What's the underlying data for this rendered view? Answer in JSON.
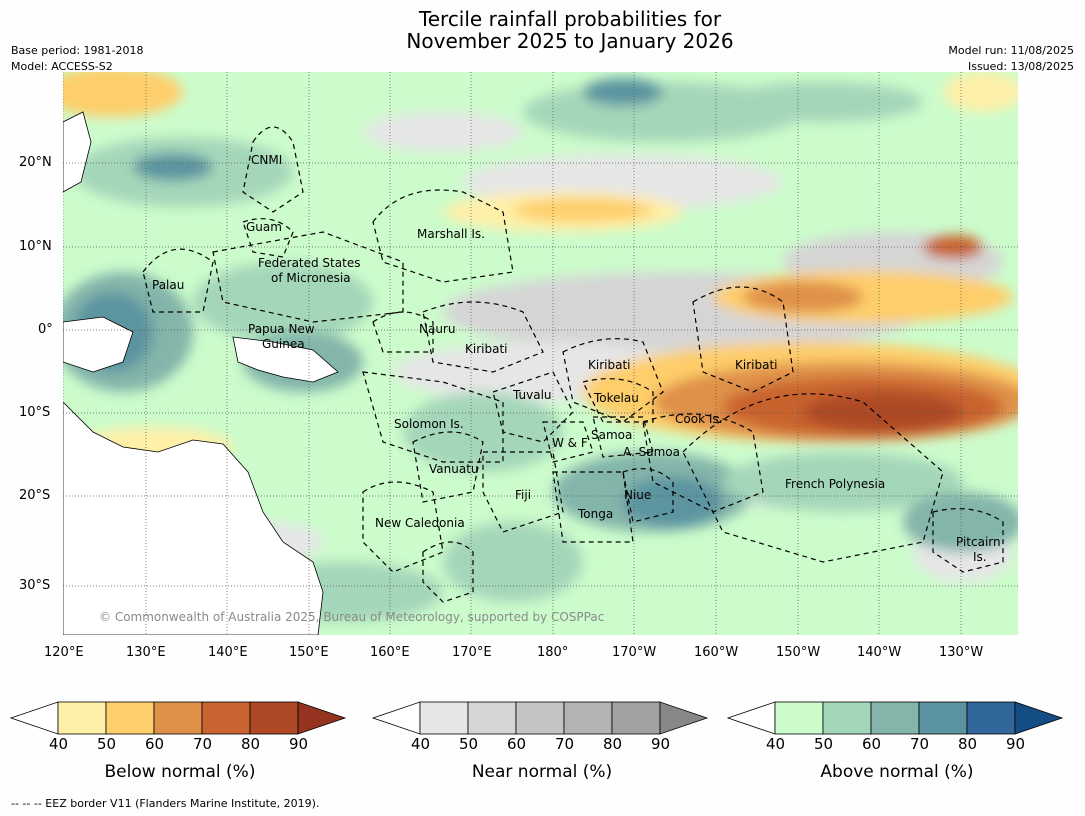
{
  "title": {
    "line1": "Tercile rainfall probabilities for",
    "line2": "November 2025 to January 2026"
  },
  "meta": {
    "base_period": "Base period: 1981-2018",
    "model": "Model: ACCESS-S2",
    "model_run": "Model run: 11/08/2025",
    "issued": "Issued: 13/08/2025"
  },
  "lat_ticks": [
    "20°N",
    "10°N",
    "0°",
    "10°S",
    "20°S",
    "30°S"
  ],
  "lon_ticks": [
    "120°E",
    "130°E",
    "140°E",
    "150°E",
    "160°E",
    "170°E",
    "180°",
    "170°W",
    "160°W",
    "150°W",
    "140°W",
    "130°W"
  ],
  "copyright": "© Commonwealth of Australia 2025, Bureau of Meteorology, supported by COSPPac",
  "regions": {
    "cnmi": "CNMI",
    "guam": "Guam",
    "marshall": "Marshall Is.",
    "palau": "Palau",
    "fsm1": "Federated States",
    "fsm2": "of Micronesia",
    "png1": "Papua New",
    "png2": "Guinea",
    "nauru": "Nauru",
    "kiribati_w": "Kiribati",
    "kiribati_c": "Kiribati",
    "kiribati_e": "Kiribati",
    "tuvalu": "Tuvalu",
    "tokelau": "Tokelau",
    "cook": "Cook Is.",
    "solomon": "Solomon Is.",
    "samoa": "Samoa",
    "wf": "W & F",
    "asamoa": "A. Samoa",
    "vanuatu": "Vanuatu",
    "fiji": "Fiji",
    "niue": "Niue",
    "tonga": "Tonga",
    "french_polynesia": "French Polynesia",
    "new_caledonia": "New Caledonia",
    "pitcairn1": "Pitcairn",
    "pitcairn2": "Is."
  },
  "colorbars": [
    {
      "label": "Below normal (%)",
      "ticks": [
        "40",
        "50",
        "60",
        "70",
        "80",
        "90"
      ],
      "colors": [
        "#ffffff",
        "#fff0a8",
        "#fece6a",
        "#df914a",
        "#c9632f",
        "#ae4825",
        "#933320"
      ]
    },
    {
      "label": "Near normal (%)",
      "ticks": [
        "40",
        "50",
        "60",
        "70",
        "80",
        "90"
      ],
      "colors": [
        "#ffffff",
        "#e6e6e6",
        "#d5d5d5",
        "#c4c4c4",
        "#b3b3b3",
        "#a1a1a1",
        "#878787"
      ]
    },
    {
      "label": "Above normal (%)",
      "ticks": [
        "40",
        "50",
        "60",
        "70",
        "80",
        "90"
      ],
      "colors": [
        "#ffffff",
        "#ccfccc",
        "#a4d7b9",
        "#83b5aa",
        "#5b94a0",
        "#31679b",
        "#144d84"
      ]
    }
  ],
  "footnote": "--  --  -- EEZ border V11 (Flanders Marine Institute, 2019)."
}
